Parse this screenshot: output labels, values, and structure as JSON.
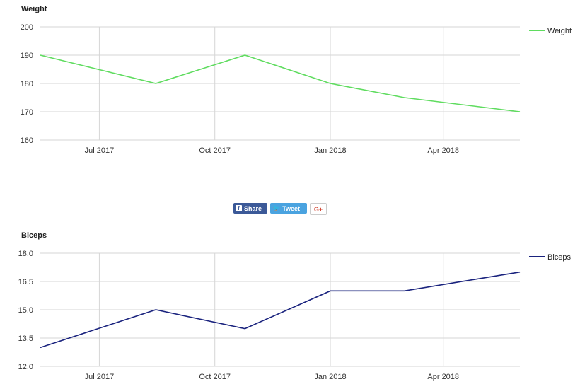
{
  "charts": [
    {
      "id": "weight",
      "title": "Weight",
      "chart_data": {
        "type": "line",
        "title": "Weight",
        "xlabel": "",
        "ylabel": "",
        "x": [
          "2017-05-15",
          "2017-08-15",
          "2017-10-25",
          "2018-01-01",
          "2018-03-01",
          "2018-06-01"
        ],
        "series": [
          {
            "name": "Weight",
            "values": [
              190,
              180,
              190,
              180,
              175,
              170
            ],
            "color": "#5fdc5f"
          }
        ],
        "xlim": [
          "2017-05-15",
          "2018-06-01"
        ],
        "ylim": [
          160,
          200
        ],
        "y_ticks": [
          "160",
          "170",
          "180",
          "190",
          "200"
        ],
        "x_ticks": [
          {
            "date": "2017-07-01",
            "label": "Jul 2017"
          },
          {
            "date": "2017-10-01",
            "label": "Oct 2017"
          },
          {
            "date": "2018-01-01",
            "label": "Jan 2018"
          },
          {
            "date": "2018-04-01",
            "label": "Apr 2018"
          }
        ],
        "grid": true,
        "legend": "right"
      }
    },
    {
      "id": "biceps",
      "title": "Biceps",
      "chart_data": {
        "type": "line",
        "title": "Biceps",
        "xlabel": "",
        "ylabel": "",
        "x": [
          "2017-05-15",
          "2017-08-15",
          "2017-10-25",
          "2018-01-01",
          "2018-03-01",
          "2018-06-01"
        ],
        "series": [
          {
            "name": "Biceps",
            "values": [
              13,
              15,
              14,
              16,
              16,
              17
            ],
            "color": "#1a237e"
          }
        ],
        "xlim": [
          "2017-05-15",
          "2018-06-01"
        ],
        "ylim": [
          12,
          18
        ],
        "y_ticks": [
          "12.0",
          "13.5",
          "15.0",
          "16.5",
          "18.0"
        ],
        "x_ticks": [
          {
            "date": "2017-07-01",
            "label": "Jul 2017"
          },
          {
            "date": "2017-10-01",
            "label": "Oct 2017"
          },
          {
            "date": "2018-01-01",
            "label": "Jan 2018"
          },
          {
            "date": "2018-04-01",
            "label": "Apr 2018"
          }
        ],
        "grid": true,
        "legend": "right"
      }
    }
  ],
  "share": {
    "facebook_label": "Share",
    "twitter_label": "Tweet",
    "gplus_label": "G+",
    "colors": {
      "facebook": "#3b5998",
      "twitter": "#4aa3e0",
      "gplus": "#d34836"
    }
  }
}
